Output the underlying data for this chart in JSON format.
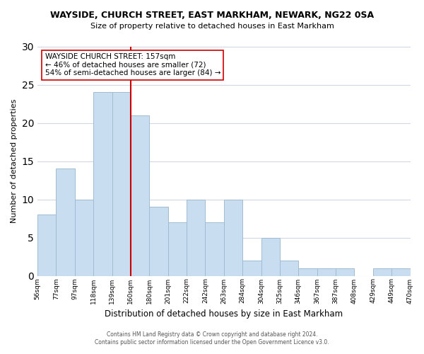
{
  "title": "WAYSIDE, CHURCH STREET, EAST MARKHAM, NEWARK, NG22 0SA",
  "subtitle": "Size of property relative to detached houses in East Markham",
  "xlabel": "Distribution of detached houses by size in East Markham",
  "ylabel": "Number of detached properties",
  "bar_color": "#c8ddf0",
  "bar_edge_color": "#a0bcd0",
  "bin_labels": [
    "56sqm",
    "77sqm",
    "97sqm",
    "118sqm",
    "139sqm",
    "160sqm",
    "180sqm",
    "201sqm",
    "222sqm",
    "242sqm",
    "263sqm",
    "284sqm",
    "304sqm",
    "325sqm",
    "346sqm",
    "367sqm",
    "387sqm",
    "408sqm",
    "429sqm",
    "449sqm",
    "470sqm"
  ],
  "bar_heights": [
    8,
    14,
    10,
    24,
    24,
    21,
    9,
    7,
    10,
    7,
    10,
    2,
    5,
    2,
    1,
    1,
    1,
    0,
    1,
    1
  ],
  "reference_line_x": 4.5,
  "reference_line_label": "WAYSIDE CHURCH STREET: 157sqm",
  "annotation_line1": "← 46% of detached houses are smaller (72)",
  "annotation_line2": "54% of semi-detached houses are larger (84) →",
  "ylim": [
    0,
    30
  ],
  "yticks": [
    0,
    5,
    10,
    15,
    20,
    25,
    30
  ],
  "footer_line1": "Contains HM Land Registry data © Crown copyright and database right 2024.",
  "footer_line2": "Contains public sector information licensed under the Open Government Licence v3.0.",
  "background_color": "#ffffff",
  "grid_color": "#d0d8e8",
  "reference_line_color": "#cc0000",
  "annotation_box_edge_color": "#cc0000"
}
